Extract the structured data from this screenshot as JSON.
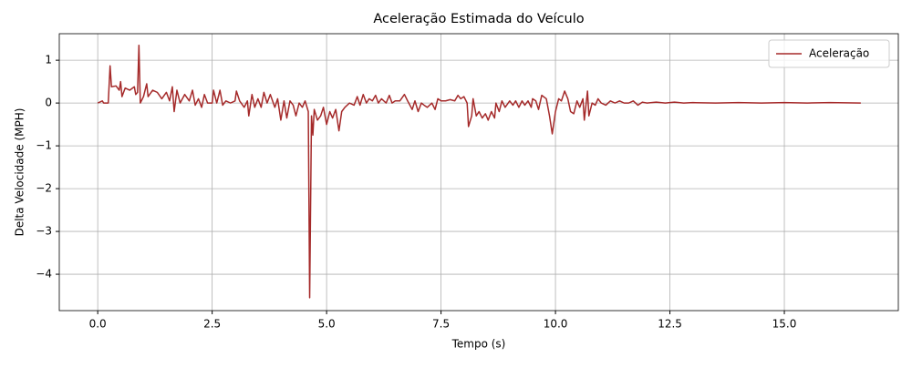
{
  "chart_data": {
    "type": "line",
    "title": "Aceleração Estimada do Veículo",
    "x_label": "Tempo (s)",
    "y_label": "Delta Velocidade (MPH)",
    "x": [
      0,
      0.1,
      0.13,
      0.23,
      0.27,
      0.3,
      0.4,
      0.47,
      0.5,
      0.53,
      0.6,
      0.7,
      0.8,
      0.83,
      0.87,
      0.9,
      0.93,
      1.0,
      1.07,
      1.1,
      1.2,
      1.3,
      1.4,
      1.5,
      1.57,
      1.63,
      1.67,
      1.73,
      1.8,
      1.9,
      2.0,
      2.07,
      2.13,
      2.2,
      2.27,
      2.33,
      2.4,
      2.5,
      2.53,
      2.6,
      2.67,
      2.73,
      2.8,
      2.9,
      3.0,
      3.03,
      3.1,
      3.2,
      3.27,
      3.3,
      3.37,
      3.43,
      3.5,
      3.57,
      3.63,
      3.7,
      3.77,
      3.87,
      3.93,
      4.0,
      4.07,
      4.13,
      4.2,
      4.27,
      4.33,
      4.4,
      4.47,
      4.53,
      4.6,
      4.63,
      4.67,
      4.7,
      4.73,
      4.8,
      4.87,
      4.93,
      5.0,
      5.07,
      5.13,
      5.2,
      5.27,
      5.33,
      5.4,
      5.5,
      5.6,
      5.67,
      5.73,
      5.8,
      5.87,
      5.93,
      6.0,
      6.07,
      6.13,
      6.2,
      6.3,
      6.37,
      6.43,
      6.5,
      6.6,
      6.7,
      6.77,
      6.87,
      6.93,
      7.0,
      7.07,
      7.13,
      7.2,
      7.3,
      7.37,
      7.43,
      7.5,
      7.6,
      7.7,
      7.8,
      7.87,
      7.93,
      8.0,
      8.07,
      8.1,
      8.17,
      8.2,
      8.27,
      8.33,
      8.4,
      8.47,
      8.53,
      8.6,
      8.67,
      8.7,
      8.77,
      8.83,
      8.9,
      9.0,
      9.07,
      9.13,
      9.2,
      9.27,
      9.33,
      9.4,
      9.47,
      9.5,
      9.57,
      9.63,
      9.7,
      9.8,
      9.87,
      9.93,
      10.0,
      10.07,
      10.13,
      10.2,
      10.27,
      10.33,
      10.4,
      10.47,
      10.53,
      10.6,
      10.63,
      10.7,
      10.73,
      10.8,
      10.87,
      10.93,
      11.0,
      11.1,
      11.2,
      11.3,
      11.4,
      11.5,
      11.6,
      11.7,
      11.8,
      11.9,
      12.0,
      12.2,
      12.4,
      12.6,
      12.8,
      13.0,
      13.5,
      14.0,
      14.5,
      15.0,
      15.5,
      16.0,
      16.67
    ],
    "series": [
      {
        "name": "Aceleração",
        "color": "#a52a2a",
        "values": [
          0,
          0.05,
          0,
          0,
          0.87,
          0.38,
          0.4,
          0.3,
          0.5,
          0.15,
          0.35,
          0.3,
          0.38,
          0.2,
          0.25,
          1.35,
          0,
          0.15,
          0.45,
          0.15,
          0.3,
          0.25,
          0.1,
          0.25,
          0.05,
          0.38,
          -0.2,
          0.3,
          0,
          0.2,
          0.05,
          0.3,
          -0.05,
          0.1,
          -0.1,
          0.2,
          0,
          0,
          0.3,
          0,
          0.3,
          -0.05,
          0.05,
          0,
          0.05,
          0.28,
          0.05,
          -0.1,
          0.05,
          -0.3,
          0.2,
          -0.1,
          0.1,
          -0.1,
          0.25,
          0,
          0.2,
          -0.1,
          0.1,
          -0.4,
          0.05,
          -0.35,
          0.05,
          -0.05,
          -0.3,
          0,
          -0.1,
          0.05,
          -0.2,
          -4.55,
          -0.3,
          -0.75,
          -0.15,
          -0.4,
          -0.3,
          -0.1,
          -0.5,
          -0.2,
          -0.35,
          -0.15,
          -0.65,
          -0.2,
          -0.1,
          0,
          -0.05,
          0.15,
          -0.05,
          0.2,
          0,
          0.1,
          0.05,
          0.18,
          0,
          0.1,
          0,
          0.18,
          0,
          0.05,
          0.05,
          0.2,
          0.05,
          -0.15,
          0.05,
          -0.2,
          0,
          -0.05,
          -0.1,
          0,
          -0.15,
          0.1,
          0.05,
          0.05,
          0.08,
          0.05,
          0.18,
          0.1,
          0.15,
          0,
          -0.55,
          -0.3,
          0.1,
          -0.3,
          -0.2,
          -0.35,
          -0.25,
          -0.4,
          -0.2,
          -0.35,
          0,
          -0.2,
          0.05,
          -0.1,
          0.05,
          -0.05,
          0.05,
          -0.1,
          0.05,
          -0.05,
          0.05,
          -0.1,
          0.1,
          0.05,
          -0.15,
          0.18,
          0.1,
          -0.3,
          -0.72,
          -0.2,
          0.1,
          0.05,
          0.28,
          0.1,
          -0.2,
          -0.25,
          0.05,
          -0.1,
          0.1,
          -0.4,
          0.28,
          -0.3,
          0,
          -0.05,
          0.1,
          0,
          -0.05,
          0.05,
          0,
          0.05,
          0,
          0,
          0.05,
          -0.05,
          0.02,
          0,
          0.02,
          0,
          0.02,
          0,
          0.01,
          0,
          0.01,
          0,
          0.01,
          0,
          0.01,
          0
        ]
      }
    ],
    "xlim": [
      -0.84,
      17.49
    ],
    "ylim": [
      -4.85,
      1.62
    ],
    "xticks": [
      {
        "value": 0,
        "label": "0.0"
      },
      {
        "value": 2.5,
        "label": "2.5"
      },
      {
        "value": 5,
        "label": "5.0"
      },
      {
        "value": 7.5,
        "label": "7.5"
      },
      {
        "value": 10,
        "label": "10.0"
      },
      {
        "value": 12.5,
        "label": "12.5"
      },
      {
        "value": 15,
        "label": "15.0"
      }
    ],
    "yticks": [
      {
        "value": -4,
        "label": "−4"
      },
      {
        "value": -3,
        "label": "−3"
      },
      {
        "value": -2,
        "label": "−2"
      },
      {
        "value": -1,
        "label": "−1"
      },
      0,
      1
    ],
    "grid": true,
    "legend": "upper right"
  }
}
